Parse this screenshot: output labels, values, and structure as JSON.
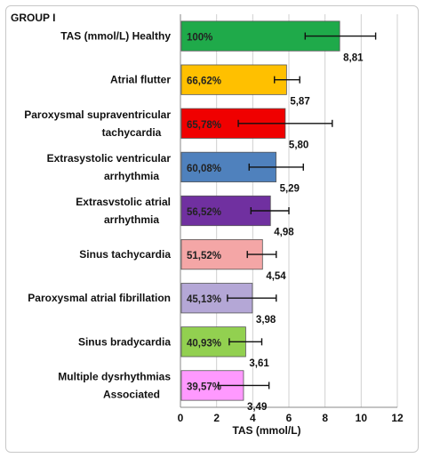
{
  "group_label": "GROUP I",
  "chart_data": {
    "type": "bar",
    "orientation": "horizontal",
    "xlabel": "TAS (mmol/L)",
    "xlim": [
      0,
      12
    ],
    "xticks": [
      0,
      2,
      4,
      6,
      8,
      10,
      12
    ],
    "grid": "vertical",
    "categories": [
      {
        "lines": [
          "TAS (mmol/L) Healthy"
        ],
        "value": 8.81,
        "value_text": "8,81",
        "percent": "100%",
        "error": [
          6.9,
          10.8
        ],
        "color": "#1faa4a"
      },
      {
        "lines": [
          "Atrial flutter"
        ],
        "value": 5.87,
        "value_text": "5,87",
        "percent": "66,62%",
        "error": [
          5.2,
          6.6
        ],
        "color": "#ffc000"
      },
      {
        "lines": [
          "Paroxysmal supraventricular",
          "tachycardia"
        ],
        "value": 5.8,
        "value_text": "5,80",
        "percent": "65,78%",
        "error": [
          3.2,
          8.4
        ],
        "color": "#f00000"
      },
      {
        "lines": [
          "Extrasystolic ventricular",
          "arrhythmia"
        ],
        "value": 5.29,
        "value_text": "5,29",
        "percent": "60,08%",
        "error": [
          3.8,
          6.8
        ],
        "color": "#4f81bd"
      },
      {
        "lines": [
          "Extrasvstolic atrial",
          "arrhythmia"
        ],
        "value": 4.98,
        "value_text": "4,98",
        "percent": "56,52%",
        "error": [
          3.9,
          6.0
        ],
        "color": "#7030a0"
      },
      {
        "lines": [
          "Sinus tachycardia"
        ],
        "value": 4.54,
        "value_text": "4,54",
        "percent": "51,52%",
        "error": [
          3.7,
          5.3
        ],
        "color": "#f4a6a6"
      },
      {
        "lines": [
          "Paroxysmal atrial fibrillation"
        ],
        "value": 3.98,
        "value_text": "3,98",
        "percent": "45,13%",
        "error": [
          2.6,
          5.3
        ],
        "color": "#b4a7d6"
      },
      {
        "lines": [
          "Sinus bradycardia"
        ],
        "value": 3.61,
        "value_text": "3,61",
        "percent": "40,93%",
        "error": [
          2.7,
          4.5
        ],
        "color": "#92d050"
      },
      {
        "lines": [
          "Multiple dysrhythmias",
          "Associated"
        ],
        "value": 3.49,
        "value_text": "3,49",
        "percent": "39,57%",
        "error": [
          2.1,
          4.9
        ],
        "color": "#ff99ff"
      }
    ]
  }
}
